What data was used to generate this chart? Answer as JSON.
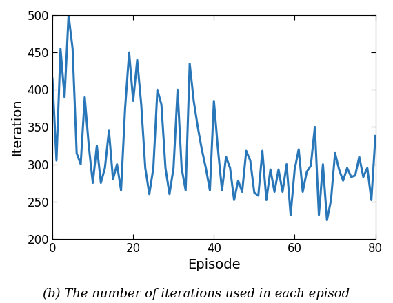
{
  "x": [
    0,
    1,
    2,
    3,
    4,
    5,
    6,
    7,
    8,
    9,
    10,
    11,
    12,
    13,
    14,
    15,
    16,
    17,
    18,
    19,
    20,
    21,
    22,
    23,
    24,
    25,
    26,
    27,
    28,
    29,
    30,
    31,
    32,
    33,
    34,
    35,
    36,
    37,
    38,
    39,
    40,
    41,
    42,
    43,
    44,
    45,
    46,
    47,
    48,
    49,
    50,
    51,
    52,
    53,
    54,
    55,
    56,
    57,
    58,
    59,
    60,
    61,
    62,
    63,
    64,
    65,
    66,
    67,
    68,
    69,
    70,
    71,
    72,
    73,
    74,
    75,
    76,
    77,
    78,
    79,
    80
  ],
  "y": [
    415,
    305,
    455,
    390,
    500,
    455,
    315,
    300,
    390,
    325,
    275,
    325,
    275,
    295,
    345,
    280,
    300,
    265,
    375,
    450,
    385,
    440,
    380,
    295,
    260,
    295,
    400,
    380,
    295,
    260,
    295,
    400,
    295,
    265,
    435,
    385,
    350,
    320,
    295,
    265,
    385,
    320,
    265,
    310,
    295,
    252,
    278,
    263,
    318,
    305,
    262,
    258,
    318,
    252,
    293,
    263,
    293,
    263,
    300,
    232,
    293,
    320,
    263,
    290,
    298,
    350,
    232,
    300,
    225,
    252,
    315,
    293,
    278,
    295,
    283,
    285,
    310,
    283,
    295,
    252,
    338
  ],
  "line_color": "#2977b8",
  "line_width": 2.2,
  "xlabel": "Episode",
  "ylabel": "Iteration",
  "xlim": [
    0,
    80
  ],
  "ylim": [
    200,
    500
  ],
  "xticks": [
    0,
    20,
    40,
    60,
    80
  ],
  "yticks": [
    200,
    250,
    300,
    350,
    400,
    450,
    500
  ],
  "caption": "(b) The number of iterations used in each episod",
  "xlabel_fontsize": 14,
  "ylabel_fontsize": 14,
  "tick_fontsize": 12,
  "caption_fontsize": 13
}
